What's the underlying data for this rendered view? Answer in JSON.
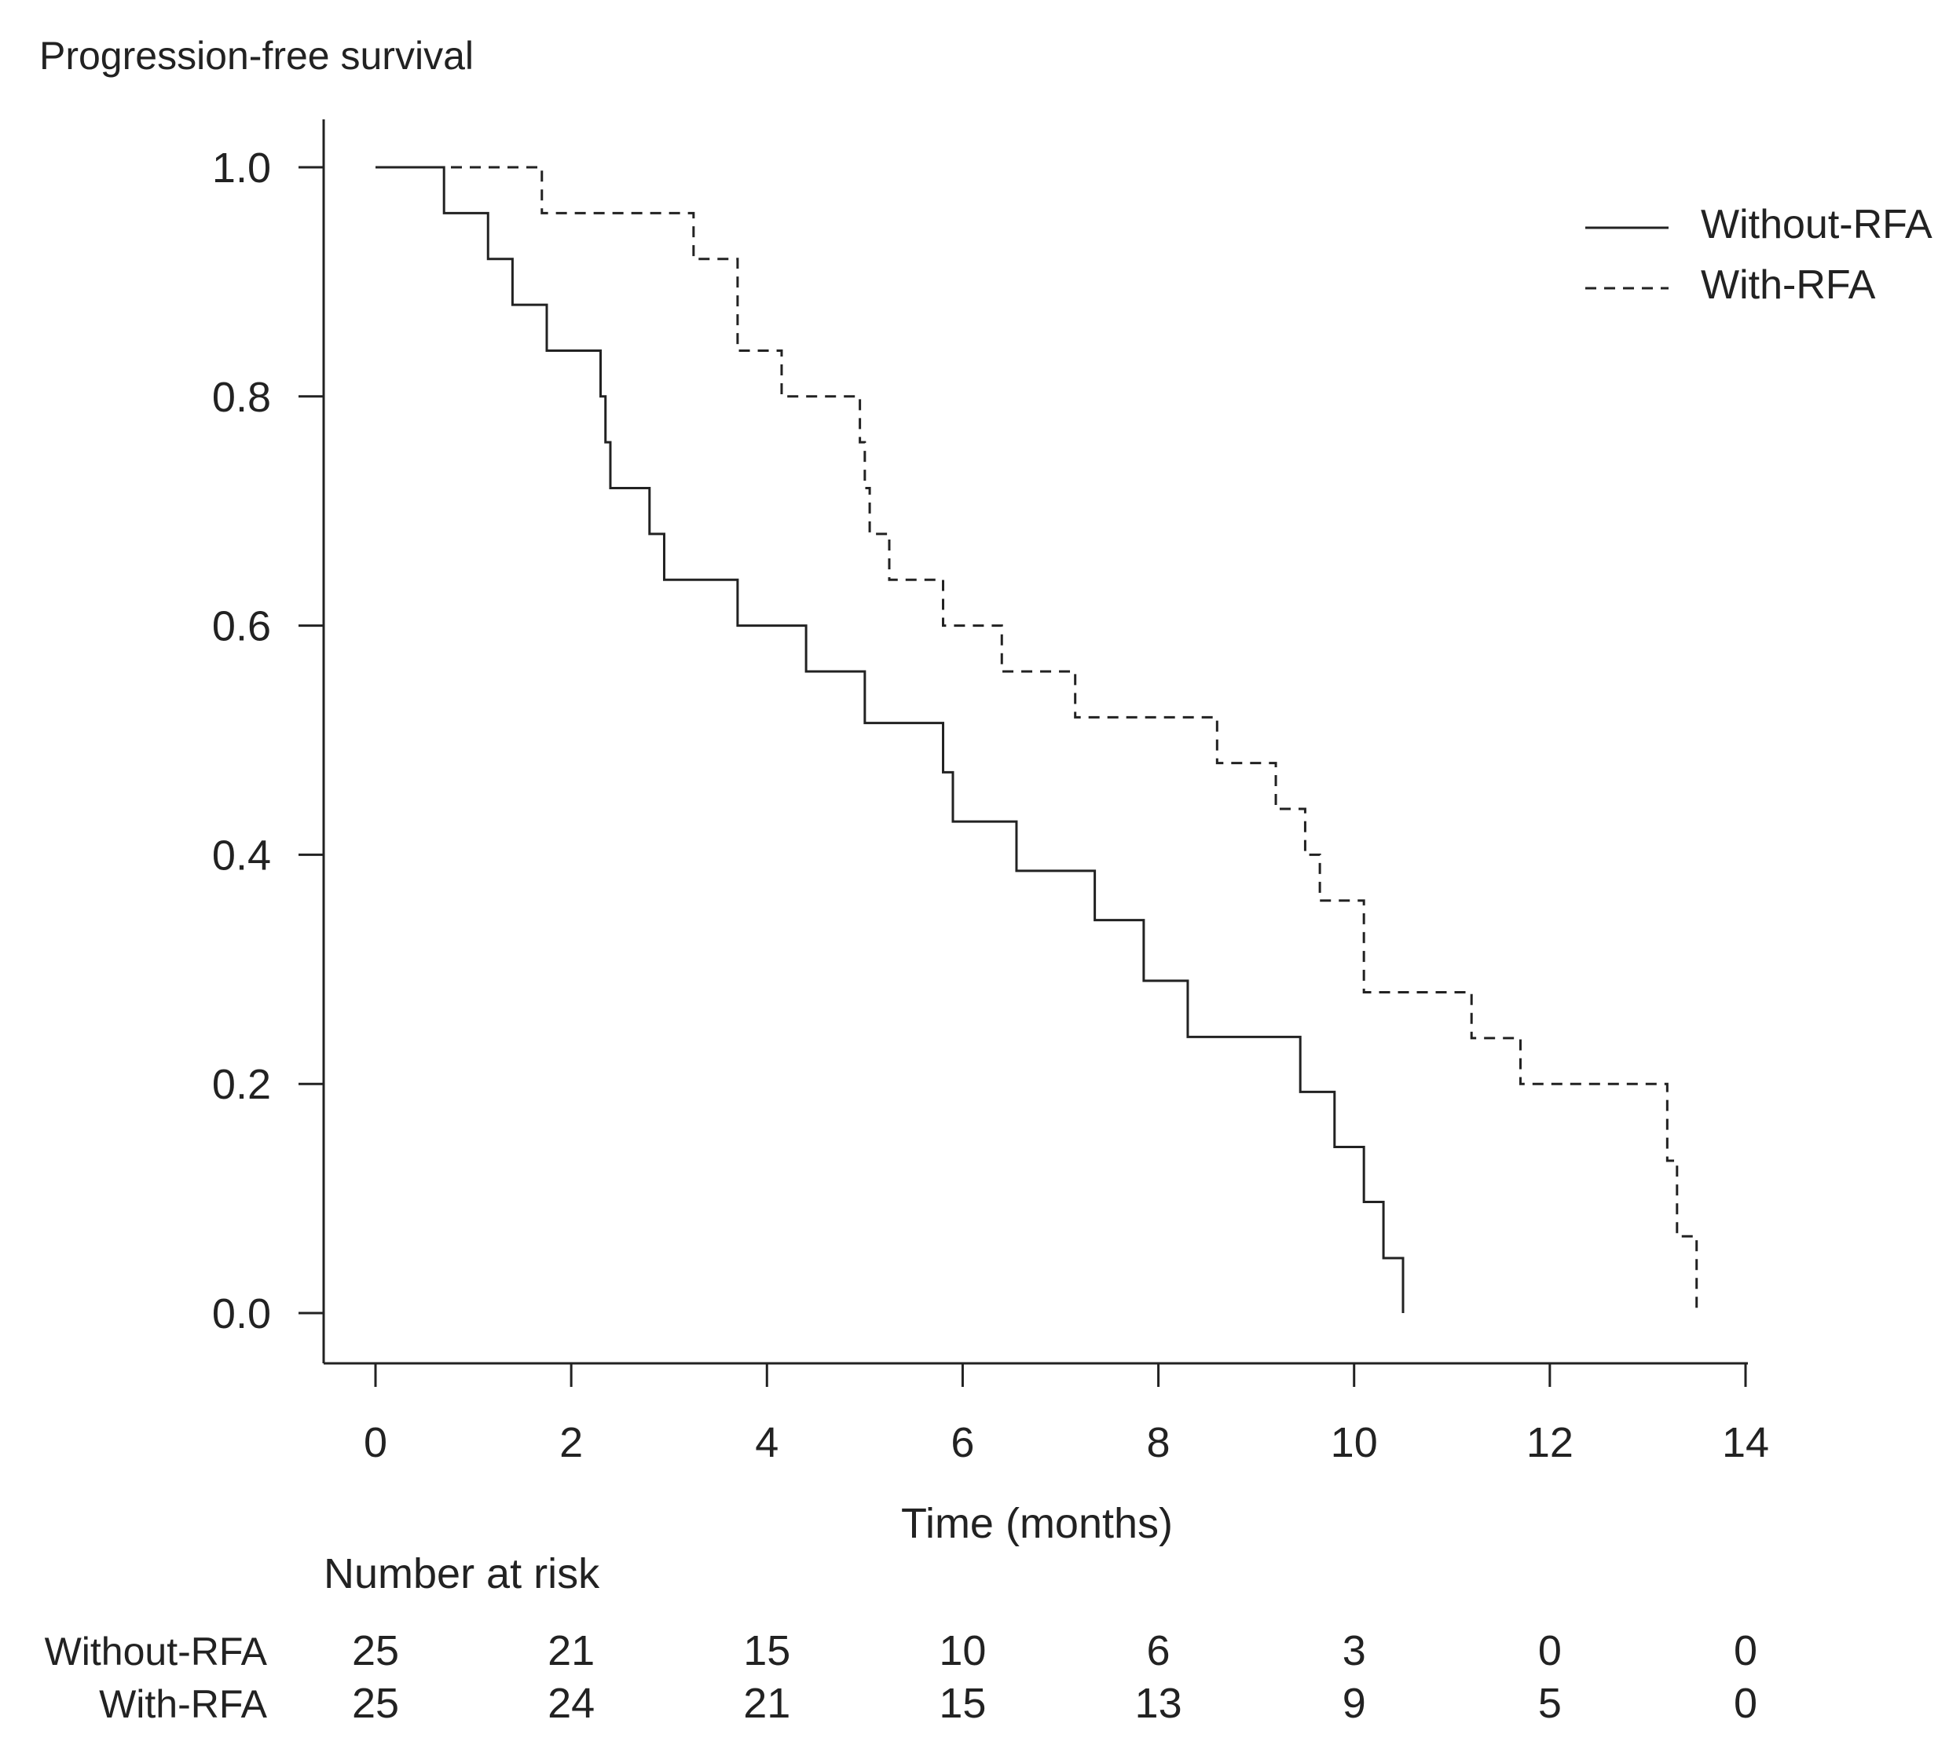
{
  "chart_data": {
    "type": "line",
    "subtype": "kaplan-meier step",
    "title": "Progression-free survival",
    "xlabel": "Time (months)",
    "ylabel": "",
    "xlim": [
      0,
      14
    ],
    "ylim": [
      0,
      1.0
    ],
    "xticks": [
      "0",
      "2",
      "4",
      "6",
      "8",
      "10",
      "12",
      "14"
    ],
    "yticks": [
      "0.0",
      "0.2",
      "0.4",
      "0.6",
      "0.8",
      "1.0"
    ],
    "grid": false,
    "legend_position": "top-right",
    "series": [
      {
        "name": "Without-RFA",
        "style": "solid",
        "color": "#222222",
        "x": [
          0,
          0.7,
          1.15,
          1.4,
          1.75,
          2.3,
          2.35,
          2.4,
          2.8,
          2.95,
          3.7,
          4.4,
          5.0,
          5.8,
          5.9,
          6.55,
          7.35,
          7.85,
          8.3,
          9.45,
          9.8,
          10.1,
          10.3,
          10.4,
          10.5
        ],
        "y": [
          1.0,
          0.96,
          0.92,
          0.88,
          0.84,
          0.8,
          0.76,
          0.72,
          0.68,
          0.64,
          0.6,
          0.56,
          0.515,
          0.472,
          0.429,
          0.386,
          0.343,
          0.29,
          0.241,
          0.193,
          0.145,
          0.097,
          0.048,
          0.048,
          0.0
        ]
      },
      {
        "name": "With-RFA",
        "style": "dashed",
        "color": "#222222",
        "x": [
          0,
          1.7,
          3.25,
          3.7,
          4.15,
          4.95,
          5.0,
          5.05,
          5.25,
          5.8,
          6.4,
          7.15,
          8.6,
          9.2,
          9.5,
          9.65,
          10.1,
          11.2,
          11.7,
          13.2,
          13.3,
          13.5
        ],
        "y": [
          1.0,
          0.96,
          0.92,
          0.84,
          0.8,
          0.76,
          0.72,
          0.68,
          0.64,
          0.6,
          0.56,
          0.52,
          0.48,
          0.44,
          0.4,
          0.36,
          0.28,
          0.24,
          0.2,
          0.133,
          0.067,
          0.0
        ]
      }
    ],
    "risk_table": {
      "heading": "Number at risk",
      "times": [
        0,
        2,
        4,
        6,
        8,
        10,
        12,
        14
      ],
      "rows": [
        {
          "label": "Without-RFA",
          "values": [
            "25",
            "21",
            "15",
            "10",
            "6",
            "3",
            "0",
            "0"
          ]
        },
        {
          "label": "With-RFA",
          "values": [
            "25",
            "24",
            "21",
            "15",
            "13",
            "9",
            "5",
            "0"
          ]
        }
      ]
    }
  }
}
